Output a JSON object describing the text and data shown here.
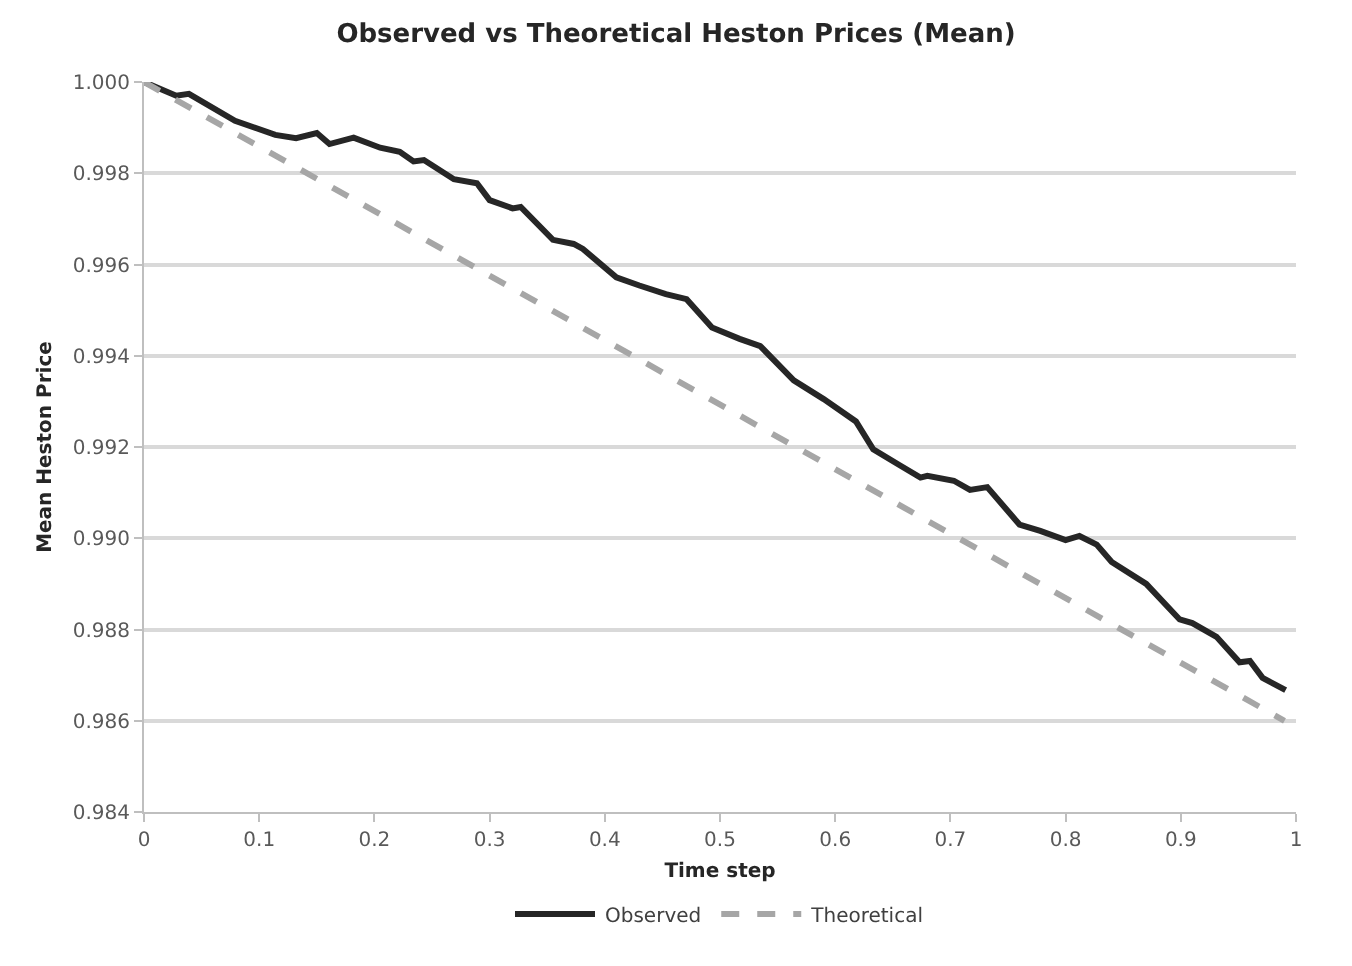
{
  "chart_data": {
    "type": "line",
    "title": "Observed vs Theoretical Heston Prices (Mean)",
    "xlabel": "Time step",
    "ylabel": "Mean Heston Price",
    "series": [
      {
        "name": "Observed",
        "color": "#262626",
        "line_style": "solid",
        "x": [
          0,
          0.028,
          0.039,
          0.079,
          0.114,
          0.132,
          0.15,
          0.161,
          0.182,
          0.205,
          0.222,
          0.234,
          0.243,
          0.269,
          0.289,
          0.3,
          0.32,
          0.327,
          0.355,
          0.373,
          0.381,
          0.41,
          0.43,
          0.453,
          0.471,
          0.493,
          0.517,
          0.535,
          0.564,
          0.59,
          0.618,
          0.633,
          0.656,
          0.674,
          0.68,
          0.703,
          0.717,
          0.732,
          0.76,
          0.778,
          0.8,
          0.812,
          0.827,
          0.84,
          0.87,
          0.899,
          0.91,
          0.931,
          0.951,
          0.96,
          0.971,
          0.991
        ],
        "values": [
          1.0,
          0.9997,
          0.99974,
          0.99915,
          0.99884,
          0.99877,
          0.99888,
          0.99864,
          0.99878,
          0.99856,
          0.99847,
          0.99826,
          0.99829,
          0.99787,
          0.99778,
          0.99741,
          0.99723,
          0.99726,
          0.99654,
          0.99645,
          0.99634,
          0.99572,
          0.99554,
          0.99535,
          0.99524,
          0.99462,
          0.99437,
          0.99421,
          0.99346,
          0.99305,
          0.99256,
          0.99195,
          0.9916,
          0.99133,
          0.99137,
          0.99126,
          0.99106,
          0.99112,
          0.9903,
          0.99016,
          0.98996,
          0.99005,
          0.98986,
          0.98948,
          0.989,
          0.98822,
          0.98814,
          0.98784,
          0.98728,
          0.98731,
          0.98694,
          0.98667
        ]
      },
      {
        "name": "Theoretical",
        "color": "#a6a6a6",
        "line_style": "dashed",
        "x": [
          0,
          0.99
        ],
        "values": [
          1.0,
          0.986
        ]
      }
    ],
    "xlim": [
      0,
      1
    ],
    "xticks": [
      0,
      0.1,
      0.2,
      0.3,
      0.4,
      0.5,
      0.6,
      0.7,
      0.8,
      0.9,
      1
    ],
    "ylim": [
      0.984,
      1.0
    ],
    "yticks": [
      0.984,
      0.986,
      0.988,
      {
        "value": 0.99,
        "label": "0.990"
      },
      0.992,
      0.994,
      0.996,
      0.998,
      {
        "value": 1.0,
        "label": "1.000"
      }
    ],
    "grid": "y",
    "legend": "bottom",
    "marker": "none"
  }
}
